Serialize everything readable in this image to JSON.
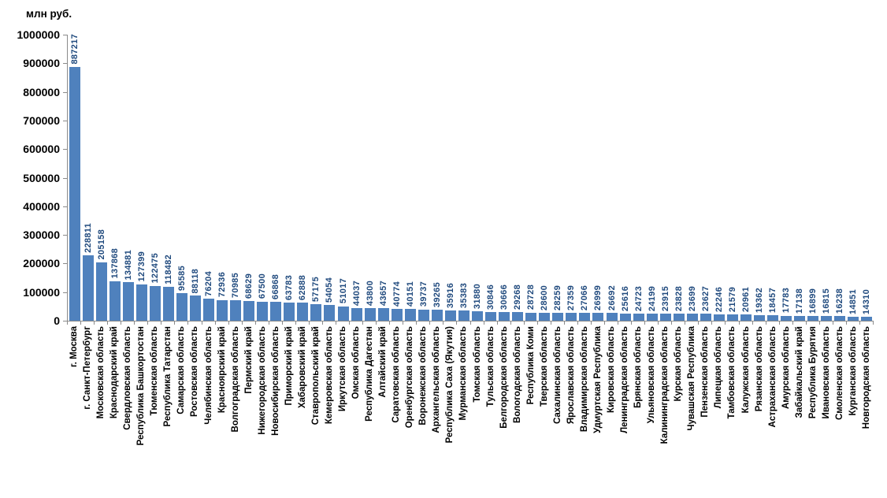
{
  "chart_data": {
    "type": "bar",
    "title": "",
    "ylabel": "млн руб.",
    "xlabel": "",
    "ylim": [
      0,
      1000000
    ],
    "yticks": [
      0,
      100000,
      200000,
      300000,
      400000,
      500000,
      600000,
      700000,
      800000,
      900000,
      1000000
    ],
    "grid": false,
    "legend": "none",
    "bar_color": "#4F81BD",
    "value_label_color": "#1F497D",
    "categories": [
      "г. Москва",
      "г. Санкт-Петербург",
      "Московская область",
      "Краснодарский край",
      "Свердловская область",
      "Республика Башкортостан",
      "Тюменская область",
      "Республика Татарстан",
      "Самарская область",
      "Ростовская область",
      "Челябинская область",
      "Красноярский край",
      "Волгоградская область",
      "Пермский край",
      "Нижегородская область",
      "Новосибирская область",
      "Приморский край",
      "Хабаровский край",
      "Ставропольский край",
      "Кемеровская область",
      "Иркутская область",
      "Омская область",
      "Республика Дагестан",
      "Алтайский край",
      "Саратовская область",
      "Оренбургская область",
      "Воронежская область",
      "Архангельская область",
      "Республика Саха (Якутия)",
      "Мурманская область",
      "Томская область",
      "Тульская область",
      "Белгородская область",
      "Вологодская область",
      "Республика Коми",
      "Тверская область",
      "Сахалинская область",
      "Ярославская область",
      "Владимирская область",
      "Удмуртская Республика",
      "Кировская область",
      "Ленинградская область",
      "Брянская область",
      "Ульяновская область",
      "Калининградская область",
      "Курская область",
      "Чувашская Республика",
      "Пензенская область",
      "Липецкая область",
      "Тамбовская область",
      "Калужская область",
      "Рязанская область",
      "Астраханская область",
      "Амурская область",
      "Забайкальский край",
      "Республика Бурятия",
      "Ивановская область",
      "Смоленская область",
      "Курганская область",
      "Новгородская область"
    ],
    "values": [
      887217,
      228811,
      205158,
      137868,
      134881,
      127399,
      122475,
      118482,
      95585,
      88118,
      76204,
      72936,
      70985,
      68629,
      67500,
      66868,
      63783,
      62888,
      57175,
      54054,
      51017,
      44037,
      43800,
      43657,
      40774,
      40151,
      39737,
      39265,
      35916,
      35383,
      31880,
      30846,
      30666,
      29268,
      28728,
      28600,
      28259,
      27359,
      27066,
      26999,
      26692,
      25616,
      24723,
      24199,
      23915,
      23828,
      23699,
      23627,
      22246,
      21579,
      20961,
      19362,
      18457,
      17783,
      17138,
      16899,
      16815,
      16238,
      14851,
      14310
    ]
  }
}
